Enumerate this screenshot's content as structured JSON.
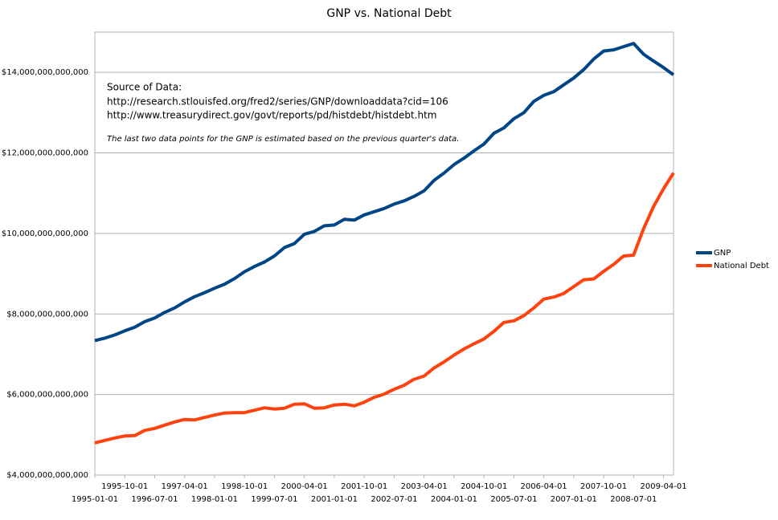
{
  "chart_data": {
    "type": "line",
    "title": "GNP vs. National Debt",
    "annotations": [
      "Source of Data:",
      "http://research.stlouisfed.org/fred2/series/GNP/downloaddata?cid=106",
      "http://www.treasurydirect.gov/govt/reports/pd/histdebt/histdebt.htm",
      "The last two data points for the GNP is estimated based on the previous quarter's data."
    ],
    "categories": [
      "1995-01-01",
      null,
      null,
      "1995-10-01",
      null,
      null,
      "1996-07-01",
      null,
      null,
      "1997-04-01",
      null,
      null,
      "1998-01-01",
      null,
      null,
      "1998-10-01",
      null,
      null,
      "1999-07-01",
      null,
      null,
      "2000-04-01",
      null,
      null,
      "2001-01-01",
      null,
      null,
      "2001-10-01",
      null,
      null,
      "2002-07-01",
      null,
      null,
      "2003-04-01",
      null,
      null,
      "2004-01-01",
      null,
      null,
      "2004-10-01",
      null,
      null,
      "2005-07-01",
      null,
      null,
      "2006-04-01",
      null,
      null,
      "2007-01-01",
      null,
      null,
      "2007-10-01",
      null,
      null,
      "2008-07-01",
      null,
      null,
      "2009-04-01",
      null
    ],
    "series": [
      {
        "name": "GNP",
        "color": "#004586",
        "values": [
          7340000000000.0,
          7400000000000.0,
          7480000000000.0,
          7580000000000.0,
          7670000000000.0,
          7810000000000.0,
          7900000000000.0,
          8040000000000.0,
          8150000000000.0,
          8300000000000.0,
          8430000000000.0,
          8530000000000.0,
          8640000000000.0,
          8740000000000.0,
          8880000000000.0,
          9050000000000.0,
          9180000000000.0,
          9290000000000.0,
          9440000000000.0,
          9650000000000.0,
          9750000000000.0,
          9980000000000.0,
          10050000000000.0,
          10190000000000.0,
          10210000000000.0,
          10350000000000.0,
          10330000000000.0,
          10460000000000.0,
          10540000000000.0,
          10620000000000.0,
          10730000000000.0,
          10810000000000.0,
          10920000000000.0,
          11060000000000.0,
          11320000000000.0,
          11500000000000.0,
          11710000000000.0,
          11870000000000.0,
          12050000000000.0,
          12220000000000.0,
          12490000000000.0,
          12620000000000.0,
          12850000000000.0,
          13000000000000.0,
          13280000000000.0,
          13430000000000.0,
          13520000000000.0,
          13690000000000.0,
          13860000000000.0,
          14070000000000.0,
          14330000000000.0,
          14530000000000.0,
          14560000000000.0,
          14640000000000.0,
          14720000000000.0,
          14450000000000.0,
          14280000000000.0,
          14120000000000.0,
          13940000000000.0
        ]
      },
      {
        "name": "National Debt",
        "color": "#ff420e",
        "values": [
          4800000000000.0,
          4860000000000.0,
          4920000000000.0,
          4970000000000.0,
          4980000000000.0,
          5110000000000.0,
          5160000000000.0,
          5240000000000.0,
          5320000000000.0,
          5380000000000.0,
          5370000000000.0,
          5430000000000.0,
          5490000000000.0,
          5540000000000.0,
          5550000000000.0,
          5550000000000.0,
          5610000000000.0,
          5670000000000.0,
          5640000000000.0,
          5660000000000.0,
          5760000000000.0,
          5770000000000.0,
          5660000000000.0,
          5670000000000.0,
          5740000000000.0,
          5760000000000.0,
          5720000000000.0,
          5810000000000.0,
          5930000000000.0,
          6010000000000.0,
          6130000000000.0,
          6230000000000.0,
          6380000000000.0,
          6460000000000.0,
          6660000000000.0,
          6810000000000.0,
          6980000000000.0,
          7130000000000.0,
          7260000000000.0,
          7380000000000.0,
          7570000000000.0,
          7790000000000.0,
          7830000000000.0,
          7960000000000.0,
          8150000000000.0,
          8370000000000.0,
          8420000000000.0,
          8510000000000.0,
          8680000000000.0,
          8850000000000.0,
          8870000000000.0,
          9060000000000.0,
          9230000000000.0,
          9440000000000.0,
          9460000000000.0,
          10120000000000.0,
          10670000000000.0,
          11110000000000.0,
          11500000000000.0
        ]
      }
    ],
    "ylim": [
      4000000000000,
      15000000000000
    ],
    "yticks": [
      {
        "value": 4000000000000,
        "label": "$4,000,000,000,000"
      },
      {
        "value": 6000000000000,
        "label": "$6,000,000,000,000"
      },
      {
        "value": 8000000000000,
        "label": "$8,000,000,000,000"
      },
      {
        "value": 10000000000000,
        "label": "$10,000,000,000,000"
      },
      {
        "value": 12000000000000,
        "label": "$12,000,000,000,000"
      },
      {
        "value": 14000000000000,
        "label": "$14,000,000,000,000"
      }
    ],
    "grid": true,
    "legend": "right"
  }
}
